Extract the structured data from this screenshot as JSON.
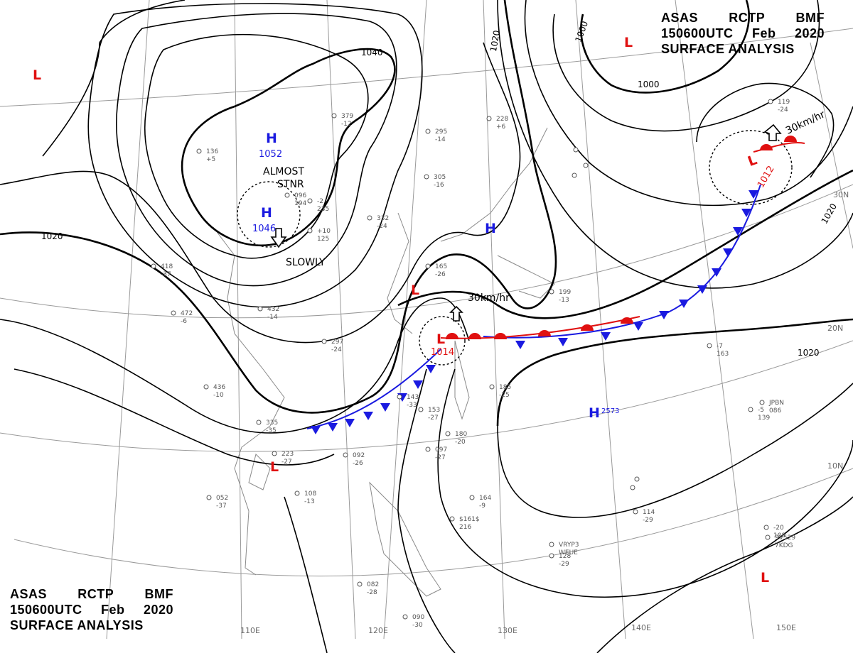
{
  "header": {
    "agency": "ASAS",
    "station": "RCTP",
    "unit": "BMF",
    "datetime": "150600UTC",
    "month": "Feb",
    "year": "2020",
    "product": "SURFACE ANALYSIS"
  },
  "isobar_labels": [
    "1040",
    "1020",
    "1020",
    "1000",
    "1000",
    "1020",
    "1020"
  ],
  "pressure_centers": [
    {
      "type": "H",
      "value": "1052",
      "color": "#1a1ae0"
    },
    {
      "type": "H",
      "value": "1046",
      "color": "#1a1ae0"
    },
    {
      "type": "H",
      "value": "",
      "color": "#1a1ae0"
    },
    {
      "type": "H",
      "value": "2573",
      "color": "#1a1ae0"
    },
    {
      "type": "L",
      "value": "1014",
      "color": "#e01010"
    },
    {
      "type": "L",
      "value": "1012",
      "color": "#e01010"
    },
    {
      "type": "L",
      "value": "",
      "color": "#e01010"
    },
    {
      "type": "L",
      "value": "",
      "color": "#e01010"
    },
    {
      "type": "L",
      "value": "",
      "color": "#e01010"
    },
    {
      "type": "L",
      "value": "",
      "color": "#e01010"
    }
  ],
  "annotations": {
    "almost": "ALMOST",
    "stnr": "STNR",
    "slowly": "SLOWLY",
    "speed_1": "30km/hr",
    "speed_2": "30km/hr"
  },
  "longitude_labels": [
    "110E",
    "120E",
    "130E",
    "140E",
    "150E"
  ],
  "latitude_labels": [
    "30N",
    "20N",
    "10N"
  ],
  "station_samples": [
    "379",
    "-12",
    "305",
    "-16",
    "295",
    "-14",
    "228",
    "+6",
    "332",
    "-24",
    "165",
    "-26",
    "199",
    "-13",
    "297",
    "-24",
    "143",
    "-33",
    "153",
    "-27",
    "185",
    "-25",
    "180",
    "-20",
    "164",
    "-9",
    "$161$",
    "216",
    "-7",
    "163",
    "JPBN",
    "086",
    "-5",
    "139",
    "-20",
    "108",
    "9V529",
    "7KDG",
    "VRYP3",
    "WEUE",
    "097",
    "-27",
    "114",
    "-29",
    "128",
    "-29",
    "119",
    "-24",
    "090",
    "-30",
    "082",
    "-28",
    "092",
    "-26",
    "108",
    "-13",
    "052",
    "-37",
    "223",
    "-27",
    "335",
    "-35",
    "436",
    "-10",
    "472",
    "-6",
    "418",
    "-37",
    "432",
    "-14",
    "136",
    "+5",
    "096",
    "194",
    "+10",
    "125",
    "-2",
    "235"
  ],
  "colors": {
    "isobar": "#000000",
    "cold_front": "#1a1ae0",
    "warm_front": "#e01010",
    "grid": "#9a9a9a",
    "coast": "#8a8a8a"
  }
}
